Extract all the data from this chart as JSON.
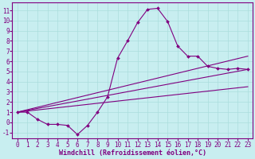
{
  "background_color": "#c8eef0",
  "line_color": "#800080",
  "grid_color": "#aadddd",
  "xlabel": "Windchill (Refroidissement éolien,°C)",
  "xlabel_fontsize": 6.0,
  "tick_fontsize": 5.5,
  "xlim": [
    -0.5,
    23.5
  ],
  "ylim": [
    -1.6,
    11.8
  ],
  "xticks": [
    0,
    1,
    2,
    3,
    4,
    5,
    6,
    7,
    8,
    9,
    10,
    11,
    12,
    13,
    14,
    15,
    16,
    17,
    18,
    19,
    20,
    21,
    22,
    23
  ],
  "yticks": [
    -1,
    0,
    1,
    2,
    3,
    4,
    5,
    6,
    7,
    8,
    9,
    10,
    11
  ],
  "curve_x": [
    0,
    1,
    2,
    3,
    4,
    5,
    6,
    7,
    8,
    9,
    10,
    11,
    12,
    13,
    14,
    15,
    16,
    17,
    18,
    19,
    20,
    21,
    22,
    23
  ],
  "curve_y": [
    1.0,
    1.0,
    0.3,
    -0.2,
    -0.2,
    -0.3,
    -1.2,
    -0.3,
    1.0,
    2.5,
    6.3,
    8.0,
    9.8,
    11.1,
    11.2,
    9.9,
    7.5,
    6.5,
    6.5,
    5.5,
    5.3,
    5.2,
    5.3,
    5.2
  ],
  "line1_x": [
    0,
    23
  ],
  "line1_y": [
    1.0,
    6.5
  ],
  "line2_x": [
    0,
    23
  ],
  "line2_y": [
    1.0,
    5.2
  ],
  "line3_x": [
    0,
    23
  ],
  "line3_y": [
    1.0,
    3.5
  ]
}
